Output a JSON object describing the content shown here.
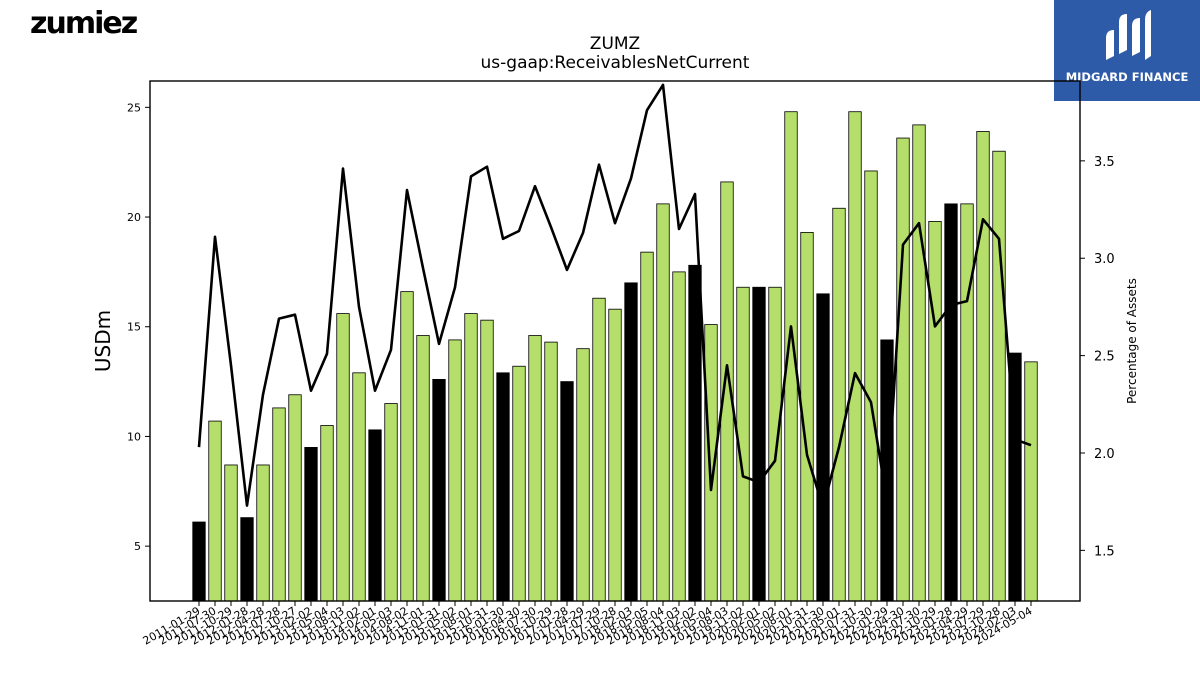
{
  "brand": {
    "logo_text": "zumiez"
  },
  "badge": {
    "text": "MIDGARD FINANCE"
  },
  "chart_data": {
    "type": "bar",
    "title": "ZUMZ",
    "subtitle": "us-gaap:ReceivablesNetCurrent",
    "ylabel": "USDm",
    "y2label": "Percentage of Assets",
    "ylim": [
      2.5,
      26.2
    ],
    "y2lim": [
      1.24,
      3.91
    ],
    "yticks": [
      5,
      10,
      15,
      20,
      25
    ],
    "y2ticks": [
      1.5,
      2.0,
      2.5,
      3.0,
      3.5
    ],
    "colors": {
      "q4_bar": "#000000",
      "bar": "#b5de6a",
      "line": "#000000"
    },
    "categories": [
      "2011-01-29",
      "2011-07-30",
      "2011-10-29",
      "2012-01-28",
      "2012-04-28",
      "2012-07-28",
      "2012-10-27",
      "2013-02-02",
      "2013-05-04",
      "2013-08-03",
      "2013-11-02",
      "2014-02-01",
      "2014-05-03",
      "2014-08-02",
      "2014-11-01",
      "2015-01-31",
      "2015-05-02",
      "2015-08-01",
      "2015-10-31",
      "2016-01-30",
      "2016-04-30",
      "2016-07-30",
      "2016-10-29",
      "2017-01-28",
      "2017-04-29",
      "2017-07-29",
      "2017-10-28",
      "2018-02-03",
      "2018-05-05",
      "2018-08-04",
      "2018-11-03",
      "2019-02-02",
      "2019-05-04",
      "2019-08-03",
      "2019-11-02",
      "2020-02-01",
      "2020-05-02",
      "2020-08-01",
      "2020-10-31",
      "2021-01-30",
      "2021-05-01",
      "2021-07-31",
      "2021-10-30",
      "2022-01-29",
      "2022-04-30",
      "2022-07-30",
      "2022-10-29",
      "2023-01-28",
      "2023-04-29",
      "2023-07-29",
      "2023-10-28",
      "2024-02-03",
      "2024-05-04"
    ],
    "values": [
      6.1,
      10.7,
      8.7,
      6.3,
      8.7,
      11.3,
      11.9,
      9.5,
      10.5,
      15.6,
      12.9,
      10.3,
      11.5,
      16.6,
      14.6,
      12.6,
      14.4,
      15.6,
      15.3,
      12.9,
      13.2,
      14.6,
      14.3,
      12.5,
      14.0,
      16.3,
      15.8,
      17.0,
      18.4,
      20.6,
      17.5,
      17.8,
      15.1,
      21.6,
      16.8,
      16.8,
      16.8,
      24.8,
      19.3,
      16.5,
      20.4,
      24.8,
      22.1,
      14.4,
      23.6,
      24.2,
      19.8,
      20.6,
      20.6,
      23.9,
      23.0,
      13.8,
      13.4
    ],
    "highlight": [
      true,
      false,
      false,
      true,
      false,
      false,
      false,
      true,
      false,
      false,
      false,
      true,
      false,
      false,
      false,
      true,
      false,
      false,
      false,
      true,
      false,
      false,
      false,
      true,
      false,
      false,
      false,
      true,
      false,
      false,
      false,
      true,
      false,
      false,
      false,
      true,
      false,
      false,
      false,
      true,
      false,
      false,
      false,
      true,
      false,
      false,
      false,
      true,
      false,
      false,
      false,
      true,
      false
    ],
    "line": {
      "axis": "right",
      "values": [
        2.03,
        3.11,
        2.45,
        1.73,
        2.3,
        2.69,
        2.71,
        2.32,
        2.51,
        3.46,
        2.75,
        2.32,
        2.53,
        3.35,
        2.95,
        2.56,
        2.85,
        3.42,
        3.47,
        3.1,
        3.14,
        3.37,
        3.16,
        2.94,
        3.13,
        3.48,
        3.18,
        3.41,
        3.76,
        3.89,
        3.15,
        3.33,
        1.81,
        2.45,
        1.88,
        1.85,
        1.96,
        2.65,
        1.99,
        1.72,
        2.03,
        2.41,
        2.26,
        1.75,
        3.07,
        3.18,
        2.65,
        2.76,
        2.78,
        3.2,
        3.1,
        2.07,
        2.04
      ]
    }
  }
}
